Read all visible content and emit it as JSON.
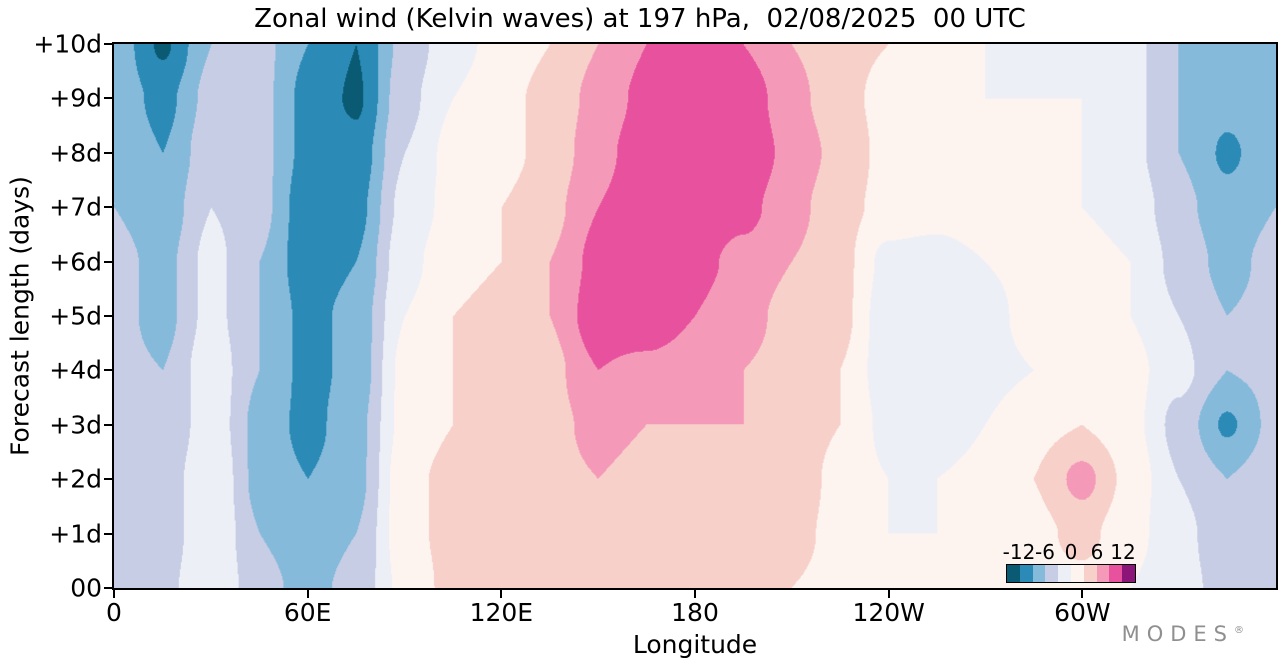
{
  "chart_data": {
    "type": "heatmap",
    "title": "Zonal wind (Kelvin waves) at 197 hPa,  02/08/2025  00 UTC",
    "xlabel": "Longitude",
    "ylabel": "Forecast length (days)",
    "lon_range": [
      0,
      360
    ],
    "day_range": [
      0,
      10
    ],
    "x_ticks": [
      {
        "value": 0,
        "label": "0"
      },
      {
        "value": 60,
        "label": "60E"
      },
      {
        "value": 120,
        "label": "120E"
      },
      {
        "value": 180,
        "label": "180"
      },
      {
        "value": 240,
        "label": "120W"
      },
      {
        "value": 300,
        "label": "60W"
      }
    ],
    "y_ticks": [
      {
        "value": 0,
        "label": "00"
      },
      {
        "value": 1,
        "label": "+1d"
      },
      {
        "value": 2,
        "label": "+2d"
      },
      {
        "value": 3,
        "label": "+3d"
      },
      {
        "value": 4,
        "label": "+4d"
      },
      {
        "value": 5,
        "label": "+5d"
      },
      {
        "value": 6,
        "label": "+6d"
      },
      {
        "value": 7,
        "label": "+7d"
      },
      {
        "value": 8,
        "label": "+8d"
      },
      {
        "value": 9,
        "label": "+9d"
      },
      {
        "value": 10,
        "label": "+10d"
      }
    ],
    "lons": [
      0,
      15,
      30,
      45,
      60,
      75,
      90,
      105,
      120,
      135,
      150,
      165,
      180,
      195,
      210,
      225,
      240,
      255,
      270,
      285,
      300,
      315,
      330,
      345,
      360
    ],
    "days": [
      0,
      1,
      2,
      3,
      4,
      5,
      6,
      7,
      8,
      9,
      10
    ],
    "values": [
      [
        -4,
        -4,
        0,
        -5,
        -7,
        -5,
        1,
        4,
        3,
        4,
        4,
        5,
        4,
        4,
        3,
        2,
        1,
        0,
        1,
        2,
        2,
        0,
        -2,
        -4,
        -4
      ],
      [
        -4,
        -5,
        0,
        -6,
        -8,
        -6,
        2,
        4,
        4,
        4,
        5,
        5,
        4,
        5,
        4,
        2,
        0,
        0,
        1,
        2,
        4,
        1,
        -2,
        -5,
        -4
      ],
      [
        -4,
        -5,
        0,
        -7,
        -9,
        -7,
        2,
        4,
        4,
        5,
        6,
        5,
        5,
        6,
        5,
        2,
        0,
        0,
        1,
        3,
        7,
        2,
        -3,
        -6,
        -4
      ],
      [
        -4,
        -6,
        -1,
        -7,
        -10,
        -7,
        1,
        3,
        4,
        5,
        7,
        6,
        6,
        6,
        5,
        3,
        -1,
        -2,
        0,
        2,
        3,
        1,
        -4,
        -9.5,
        -5
      ],
      [
        -5,
        -6,
        -1,
        -6,
        -10,
        -8,
        1,
        3,
        4,
        5,
        9,
        8,
        7,
        6,
        5,
        3,
        -2,
        -3,
        -1,
        0,
        1,
        1,
        -2,
        -6,
        -5
      ],
      [
        -5,
        -7,
        -2,
        -6,
        -10,
        -8,
        0,
        3,
        4,
        6,
        11,
        11.5,
        9,
        7,
        5,
        4,
        -2,
        -3,
        -1,
        1,
        1,
        0,
        -3,
        -6,
        -5
      ],
      [
        -5,
        -7,
        -2,
        -6,
        -11,
        -9,
        -1,
        2,
        3,
        6,
        10,
        11.5,
        10,
        8,
        6,
        4,
        -1,
        -2,
        0,
        1,
        1,
        0,
        -4,
        -7,
        -5
      ],
      [
        -6,
        -8,
        -3,
        -5,
        -11,
        -10,
        -2,
        1,
        3,
        5,
        9,
        11.5,
        11.5,
        10,
        7,
        4,
        2,
        2,
        3,
        1,
        0,
        -1,
        -5,
        -8,
        -6
      ],
      [
        -6,
        -9,
        -4,
        -5,
        -10,
        -11,
        -3,
        1,
        2,
        4,
        8,
        11,
        11.5,
        11.5,
        8,
        5,
        2,
        1,
        2,
        1,
        0,
        -2,
        -6,
        -9.5,
        -7
      ],
      [
        -7,
        -10,
        -5,
        -5,
        -10,
        -12.5,
        -4,
        0,
        2,
        4,
        7,
        10,
        11.5,
        11,
        7,
        4,
        2,
        1,
        0,
        0,
        0,
        -2,
        -6,
        -8,
        -7
      ],
      [
        -7,
        -12.5,
        -6,
        -5,
        -9,
        -12,
        -5,
        -1,
        1,
        3,
        6,
        9,
        11,
        9,
        6,
        4,
        3,
        1,
        0,
        0,
        -1,
        -2,
        -6,
        -7,
        -7
      ]
    ],
    "level_thresholds": [
      -12,
      -9,
      -6,
      -3,
      0,
      3,
      6,
      9,
      12
    ],
    "colors": [
      "#0a5a73",
      "#2b8ab6",
      "#85badb",
      "#c6cde5",
      "#edeff7",
      "#fdf4f0",
      "#f8d0ca",
      "#f49ab8",
      "#e7519e",
      "#8c1578"
    ],
    "colorbar": {
      "vmin": -15,
      "vmax": 15,
      "ticks": [
        {
          "value": -12,
          "label": "-12"
        },
        {
          "value": -6,
          "label": "-6"
        },
        {
          "value": 0,
          "label": "0"
        },
        {
          "value": 6,
          "label": "6"
        },
        {
          "value": 12,
          "label": "12"
        }
      ]
    },
    "legend_position": "inside-bottom-right",
    "grid": false
  },
  "branding": {
    "text": "MODES",
    "reg": "®"
  }
}
